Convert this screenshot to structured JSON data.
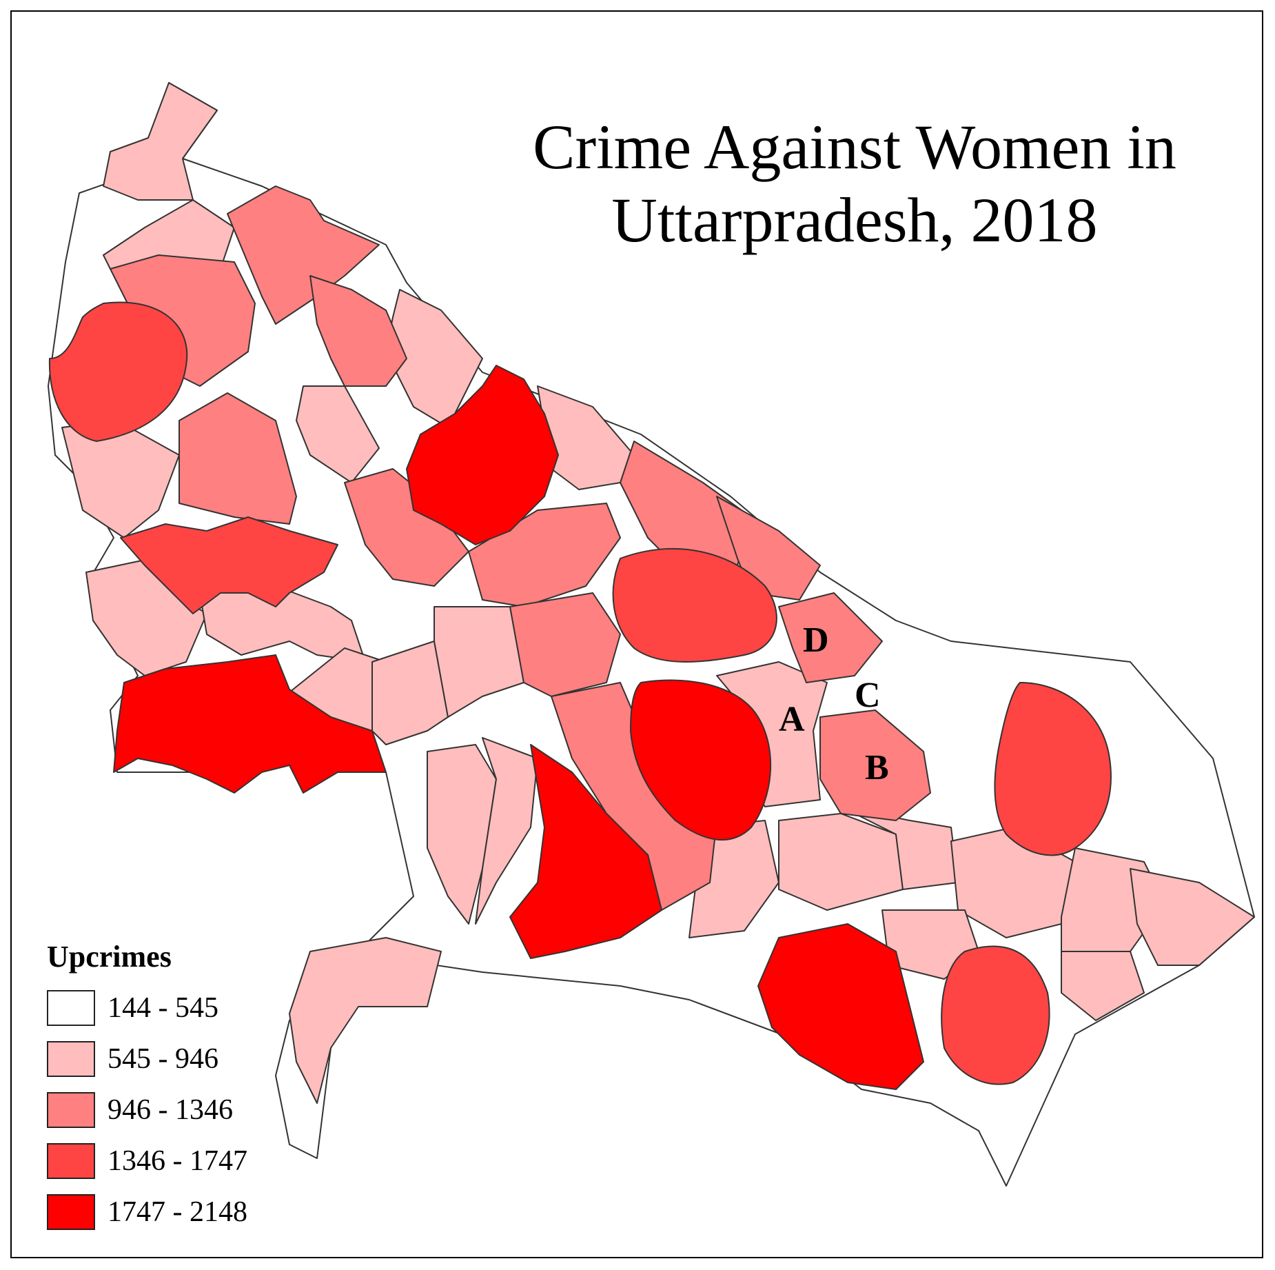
{
  "title": {
    "line1": "Crime Against Women in",
    "line2": "Uttarpradesh, 2018"
  },
  "legend": {
    "title": "Upcrimes",
    "classes": [
      {
        "label": "144 - 545",
        "color": "#ffffff"
      },
      {
        "label": "545 - 946",
        "color": "#ffbdbd"
      },
      {
        "label": "946 - 1346",
        "color": "#ff8080"
      },
      {
        "label": "1346 - 1747",
        "color": "#ff4444"
      },
      {
        "label": "1747 - 2148",
        "color": "#ff0000"
      }
    ]
  },
  "map_labels": {
    "A": "A",
    "B": "B",
    "C": "C",
    "D": "D"
  }
}
